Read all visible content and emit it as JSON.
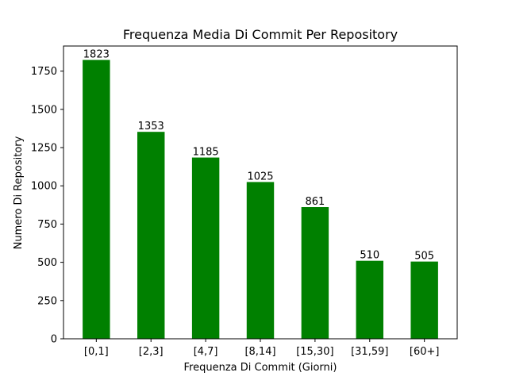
{
  "chart_data": {
    "type": "bar",
    "title": "Frequenza Media Di Commit Per Repository",
    "xlabel": "Frequenza Di Commit (Giorni)",
    "ylabel": "Numero Di Repository",
    "categories": [
      "[0,1]",
      "[2,3]",
      "[4,7]",
      "[8,14]",
      "[15,30]",
      "[31,59]",
      "[60+]"
    ],
    "values": [
      1823,
      1353,
      1185,
      1025,
      861,
      510,
      505
    ],
    "data_labels": [
      "1823",
      "1353",
      "1185",
      "1025",
      "861",
      "510",
      "505"
    ],
    "yticks": [
      0,
      250,
      500,
      750,
      1000,
      1250,
      1500,
      1750
    ],
    "ytick_labels": [
      "0",
      "250",
      "500",
      "750",
      "1000",
      "1250",
      "1500",
      "1750"
    ],
    "ylim": [
      0,
      1914.15
    ],
    "grid": false,
    "legend": "none",
    "bar_color": "#008000"
  }
}
